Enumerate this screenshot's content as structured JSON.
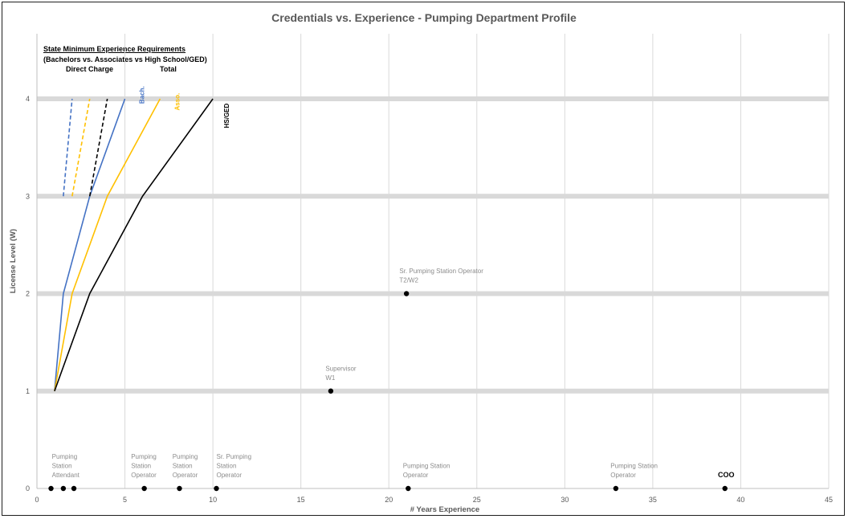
{
  "chart_data": {
    "type": "scatter",
    "title": "Credentials vs. Experience - Pumping Department Profile",
    "xlabel": "# Years Experience",
    "ylabel": "License Level (W)",
    "xlim": [
      0,
      45
    ],
    "ylim": [
      0,
      4
    ],
    "x_ticks": [
      "0",
      "5",
      "10",
      "15",
      "20",
      "25",
      "30",
      "35",
      "40",
      "45"
    ],
    "y_ticks": [
      "0",
      "1",
      "2",
      "3",
      "4"
    ],
    "grid": "vertical light gray every 5 years; thick gray horizontal bands at license levels 1-4",
    "notes": {
      "title": "State Minimum Experience Requirements",
      "subtitle": "(Bachelors vs. Associates vs High School/GED)",
      "direct_label": "Direct Charge",
      "total_label": "Total"
    },
    "requirement_lines": [
      {
        "name": "Bach.",
        "color": "#4472c4",
        "dash": false,
        "points": [
          [
            1,
            1
          ],
          [
            1.5,
            2
          ],
          [
            3,
            3
          ],
          [
            5,
            4
          ]
        ]
      },
      {
        "name": "Asso.",
        "color": "#ffc000",
        "dash": false,
        "points": [
          [
            1,
            1
          ],
          [
            2,
            2
          ],
          [
            4,
            3
          ],
          [
            7,
            4
          ]
        ]
      },
      {
        "name": "HS/GED",
        "color": "#000000",
        "dash": false,
        "points": [
          [
            1,
            1
          ],
          [
            3,
            2
          ],
          [
            6,
            3
          ],
          [
            10,
            4
          ]
        ]
      },
      {
        "name": "",
        "color": "#4472c4",
        "dash": true,
        "points": [
          [
            1.5,
            3
          ],
          [
            2,
            4
          ]
        ]
      },
      {
        "name": "",
        "color": "#ffc000",
        "dash": true,
        "points": [
          [
            2,
            3
          ],
          [
            3,
            4
          ]
        ]
      },
      {
        "name": "",
        "color": "#000000",
        "dash": true,
        "points": [
          [
            3,
            3
          ],
          [
            4,
            4
          ]
        ]
      }
    ],
    "series_labels": [
      {
        "text": "Bach.",
        "color": "#4472c4",
        "x": 6.1,
        "y": 3.95
      },
      {
        "text": "Asso.",
        "color": "#ffc000",
        "x": 8.1,
        "y": 3.88
      },
      {
        "text": "HS/GED",
        "color": "#000000",
        "x": 10.9,
        "y": 3.7
      }
    ],
    "points": [
      {
        "x": 0.8,
        "y": 0,
        "label": ""
      },
      {
        "x": 1.5,
        "y": 0,
        "label": "Pumping Station Attendant"
      },
      {
        "x": 2.1,
        "y": 0,
        "label": ""
      },
      {
        "x": 6.1,
        "y": 0,
        "label": "Pumping Station Operator"
      },
      {
        "x": 8.1,
        "y": 0,
        "label": "Pumping Station Operator"
      },
      {
        "x": 10.2,
        "y": 0,
        "label": "Sr. Pumping Station Operator"
      },
      {
        "x": 21.1,
        "y": 0,
        "label": "Pumping Station Operator"
      },
      {
        "x": 32.9,
        "y": 0,
        "label": "Pumping Station Operator"
      },
      {
        "x": 39.1,
        "y": 0,
        "label": "COO"
      },
      {
        "x": 16.7,
        "y": 1,
        "label": "Supervisor W1"
      },
      {
        "x": 21,
        "y": 2,
        "label": "Sr. Pumping Station Operator T2/W2"
      }
    ],
    "point_labels": [
      {
        "lines": [
          "Pumping",
          "Station",
          "Attendant"
        ],
        "x": 0.85,
        "y": 0,
        "bold": false
      },
      {
        "lines": [
          "Pumping",
          "Station",
          "Operator"
        ],
        "x": 5.35,
        "y": 0,
        "bold": false
      },
      {
        "lines": [
          "Pumping",
          "Station",
          "Operator"
        ],
        "x": 7.7,
        "y": 0,
        "bold": false
      },
      {
        "lines": [
          "Sr. Pumping",
          "Station",
          "Operator"
        ],
        "x": 10.2,
        "y": 0,
        "bold": false
      },
      {
        "lines": [
          "Pumping Station",
          "Operator"
        ],
        "x": 20.8,
        "y": 0,
        "bold": false
      },
      {
        "lines": [
          "Pumping Station",
          "Operator"
        ],
        "x": 32.6,
        "y": 0,
        "bold": false
      },
      {
        "lines": [
          "COO"
        ],
        "x": 38.7,
        "y": 0,
        "bold": true
      },
      {
        "lines": [
          "Supervisor",
          "W1"
        ],
        "x": 16.4,
        "y": 1,
        "bold": false
      },
      {
        "lines": [
          "Sr. Pumping Station Operator",
          "T2/W2"
        ],
        "x": 20.6,
        "y": 2,
        "bold": false
      }
    ]
  }
}
